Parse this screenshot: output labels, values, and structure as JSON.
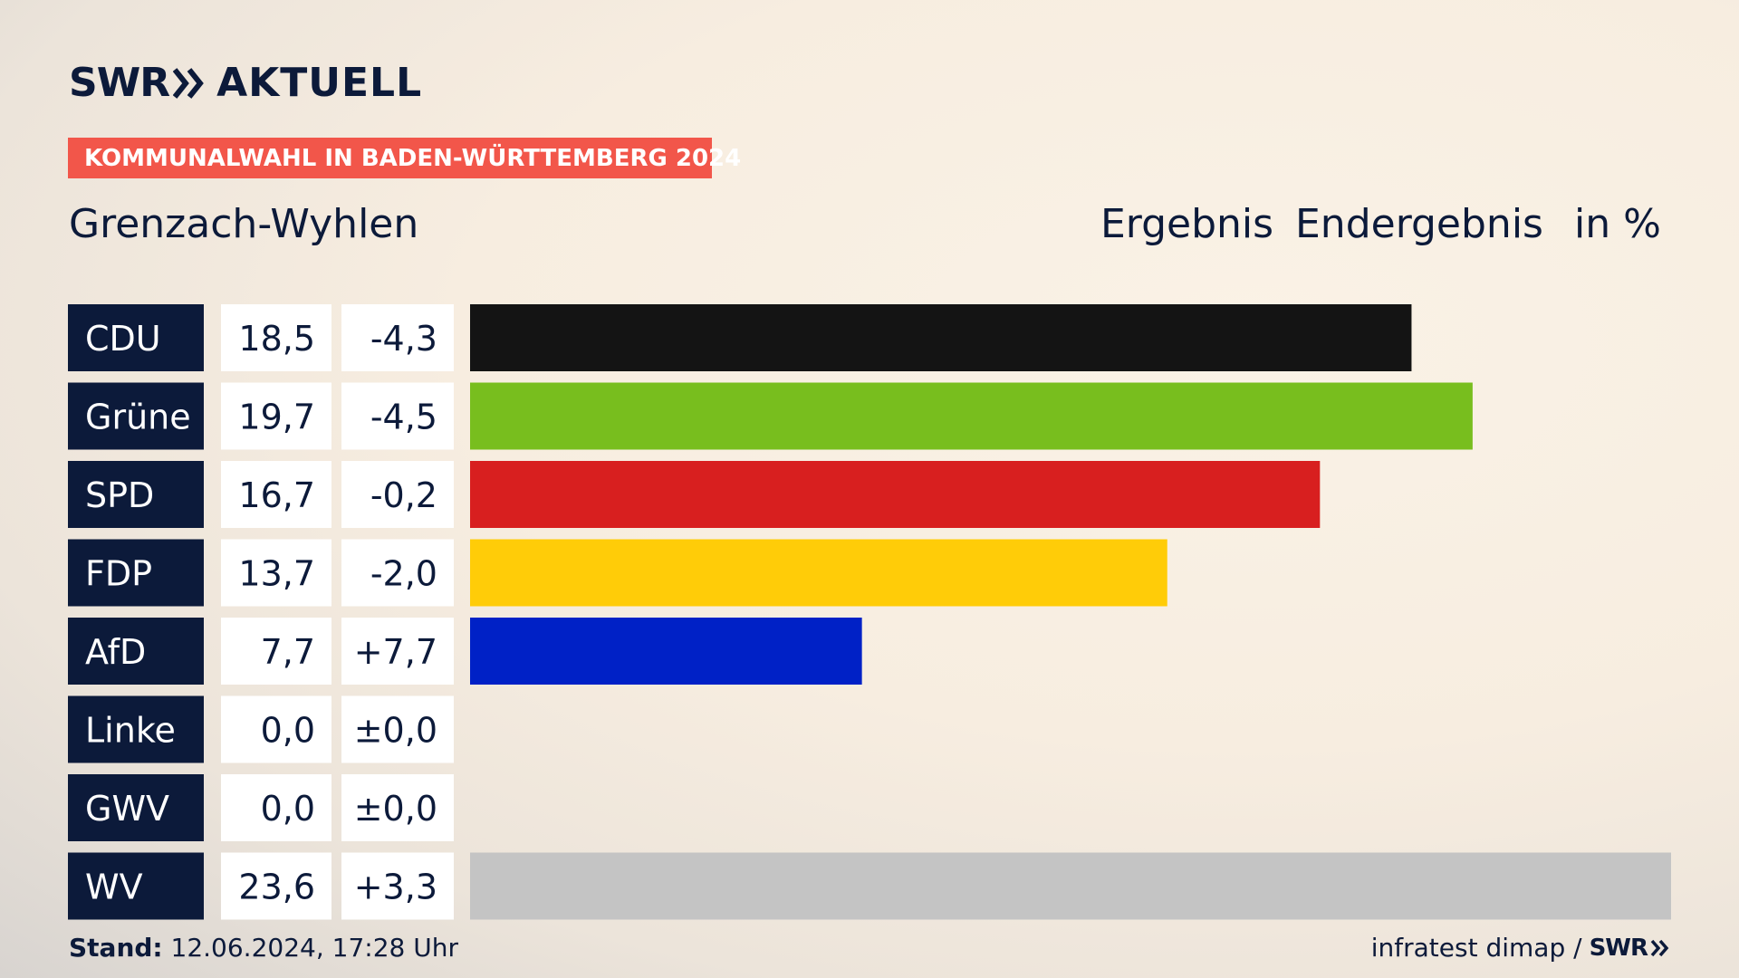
{
  "brand": {
    "word1": "SWR",
    "word2": "AKTUELL",
    "icon": "double-chevron-right-icon"
  },
  "tag": "KOMMUNALWAHL IN BADEN-WÜRTTEMBERG 2024",
  "header": {
    "place": "Grenzach-Wyhlen",
    "col1": "Ergebnis",
    "col2": "Endergebnis",
    "col3": "in %"
  },
  "colors": {
    "navy": "#0c1a3a",
    "accent": "#f2564a"
  },
  "chart_data": {
    "type": "bar",
    "orientation": "horizontal",
    "categories": [
      "CDU",
      "Grüne",
      "SPD",
      "FDP",
      "AfD",
      "Linke",
      "GWV",
      "WV"
    ],
    "values": [
      18.5,
      19.7,
      16.7,
      13.7,
      7.7,
      0.0,
      0.0,
      23.6
    ],
    "value_labels": [
      "18,5",
      "19,7",
      "16,7",
      "13,7",
      "7,7",
      "0,0",
      "0,0",
      "23,6"
    ],
    "diff_labels": [
      "-4,3",
      "-4,5",
      "-0,2",
      "-2,0",
      "+7,7",
      "±0,0",
      "±0,0",
      "+3,3"
    ],
    "colors": [
      "#141414",
      "#78be1e",
      "#d81f1f",
      "#ffcc08",
      "#0021c6",
      "#b4246e",
      "#9a9a9a",
      "#c4c4c4"
    ],
    "xlim": [
      0,
      23.6
    ]
  },
  "footer": {
    "stand_label": "Stand:",
    "stand_value": " 12.06.2024, 17:28 Uhr",
    "source": "infratest dimap /",
    "source_brand": "SWR"
  }
}
